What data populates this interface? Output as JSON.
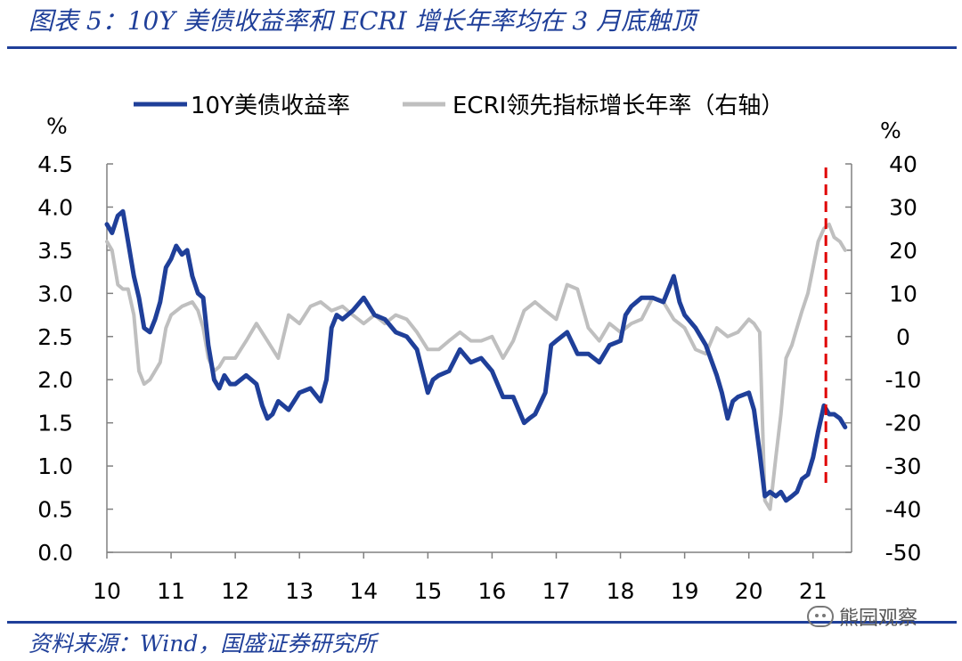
{
  "header": {
    "title": "图表 5：10Y 美债收益率和 ECRI 增长年率均在 3 月底触顶"
  },
  "footer": {
    "source": "资料来源：Wind，国盛证券研究所",
    "watermark": "熊园观察"
  },
  "colors": {
    "accent": "#1f3f99",
    "yield_line": "#1f3f99",
    "ecri_line": "#bfbfbf",
    "marker": "#e00000",
    "axis": "#808080",
    "text": "#000000"
  },
  "chart_data": {
    "type": "line",
    "title": "",
    "left_axis": {
      "unit_label": "%",
      "range": [
        0.0,
        4.5
      ],
      "ticks": [
        "0.0",
        "0.5",
        "1.0",
        "1.5",
        "2.0",
        "2.5",
        "3.0",
        "3.5",
        "4.0",
        "4.5"
      ]
    },
    "right_axis": {
      "unit_label": "%",
      "range": [
        -50,
        40
      ],
      "ticks": [
        "-50",
        "-40",
        "-30",
        "-20",
        "-10",
        "0",
        "10",
        "20",
        "30",
        "40"
      ]
    },
    "x_axis": {
      "range": [
        2010.0,
        2021.6
      ],
      "ticks": [
        2010,
        2011,
        2012,
        2013,
        2014,
        2015,
        2016,
        2017,
        2018,
        2019,
        2020,
        2021
      ],
      "tick_labels": [
        "10",
        "11",
        "12",
        "13",
        "14",
        "15",
        "16",
        "17",
        "18",
        "19",
        "20",
        "21"
      ]
    },
    "legend": {
      "placement": "top",
      "entries": [
        "10Y美债收益率",
        "ECRI领先指标增长年率（右轴）"
      ]
    },
    "grid": false,
    "series": [
      {
        "name": "10Y美债收益率",
        "axis": "left",
        "x": [
          2010.0,
          2010.08,
          2010.17,
          2010.25,
          2010.33,
          2010.42,
          2010.5,
          2010.58,
          2010.67,
          2010.75,
          2010.83,
          2010.92,
          2011.0,
          2011.08,
          2011.17,
          2011.25,
          2011.33,
          2011.42,
          2011.5,
          2011.58,
          2011.67,
          2011.75,
          2011.83,
          2011.92,
          2012.0,
          2012.17,
          2012.33,
          2012.42,
          2012.5,
          2012.58,
          2012.67,
          2012.83,
          2013.0,
          2013.17,
          2013.33,
          2013.42,
          2013.5,
          2013.58,
          2013.67,
          2013.83,
          2014.0,
          2014.17,
          2014.33,
          2014.5,
          2014.67,
          2014.83,
          2015.0,
          2015.08,
          2015.17,
          2015.33,
          2015.5,
          2015.67,
          2015.83,
          2016.0,
          2016.17,
          2016.33,
          2016.5,
          2016.58,
          2016.67,
          2016.83,
          2016.92,
          2017.0,
          2017.17,
          2017.33,
          2017.5,
          2017.67,
          2017.75,
          2017.83,
          2018.0,
          2018.08,
          2018.17,
          2018.33,
          2018.5,
          2018.67,
          2018.75,
          2018.83,
          2018.92,
          2019.0,
          2019.17,
          2019.33,
          2019.5,
          2019.58,
          2019.67,
          2019.75,
          2019.83,
          2020.0,
          2020.08,
          2020.17,
          2020.25,
          2020.33,
          2020.42,
          2020.5,
          2020.58,
          2020.67,
          2020.75,
          2020.83,
          2020.92,
          2021.0,
          2021.08,
          2021.17,
          2021.25,
          2021.33,
          2021.42,
          2021.5
        ],
        "values": [
          3.8,
          3.7,
          3.9,
          3.95,
          3.6,
          3.2,
          2.95,
          2.6,
          2.55,
          2.7,
          2.9,
          3.3,
          3.4,
          3.55,
          3.45,
          3.5,
          3.2,
          3.0,
          2.95,
          2.4,
          2.0,
          1.9,
          2.05,
          1.95,
          1.95,
          2.05,
          1.95,
          1.7,
          1.55,
          1.6,
          1.75,
          1.65,
          1.85,
          1.9,
          1.75,
          2.0,
          2.6,
          2.75,
          2.7,
          2.8,
          2.95,
          2.75,
          2.7,
          2.55,
          2.5,
          2.35,
          1.85,
          2.0,
          2.05,
          2.1,
          2.35,
          2.2,
          2.25,
          2.1,
          1.8,
          1.8,
          1.5,
          1.55,
          1.6,
          1.85,
          2.4,
          2.45,
          2.55,
          2.3,
          2.3,
          2.2,
          2.3,
          2.4,
          2.45,
          2.75,
          2.85,
          2.95,
          2.95,
          2.9,
          3.05,
          3.2,
          2.9,
          2.75,
          2.6,
          2.4,
          2.05,
          1.85,
          1.55,
          1.75,
          1.8,
          1.85,
          1.65,
          1.15,
          0.65,
          0.7,
          0.65,
          0.7,
          0.6,
          0.65,
          0.7,
          0.85,
          0.9,
          1.1,
          1.4,
          1.7,
          1.6,
          1.6,
          1.55,
          1.45
        ]
      },
      {
        "name": "ECRI领先指标增长年率（右轴）",
        "axis": "right",
        "x": [
          2010.0,
          2010.08,
          2010.17,
          2010.25,
          2010.33,
          2010.42,
          2010.5,
          2010.58,
          2010.67,
          2010.75,
          2010.83,
          2010.92,
          2011.0,
          2011.17,
          2011.33,
          2011.42,
          2011.5,
          2011.58,
          2011.67,
          2011.75,
          2011.83,
          2012.0,
          2012.17,
          2012.33,
          2012.5,
          2012.67,
          2012.83,
          2013.0,
          2013.17,
          2013.33,
          2013.5,
          2013.67,
          2013.83,
          2014.0,
          2014.17,
          2014.33,
          2014.5,
          2014.67,
          2014.83,
          2015.0,
          2015.17,
          2015.33,
          2015.5,
          2015.67,
          2015.83,
          2016.0,
          2016.17,
          2016.33,
          2016.5,
          2016.67,
          2016.83,
          2017.0,
          2017.17,
          2017.33,
          2017.5,
          2017.67,
          2017.83,
          2018.0,
          2018.17,
          2018.33,
          2018.5,
          2018.67,
          2018.83,
          2019.0,
          2019.17,
          2019.33,
          2019.5,
          2019.67,
          2019.83,
          2020.0,
          2020.08,
          2020.17,
          2020.25,
          2020.33,
          2020.42,
          2020.5,
          2020.58,
          2020.67,
          2020.75,
          2020.83,
          2020.92,
          2021.0,
          2021.08,
          2021.17,
          2021.25,
          2021.33,
          2021.42,
          2021.5
        ],
        "values": [
          22,
          20,
          12,
          11,
          11,
          5,
          -8,
          -11,
          -10,
          -8,
          -6,
          2,
          5,
          7,
          8,
          6,
          2,
          -5,
          -8,
          -7,
          -5,
          -5,
          -1,
          3,
          -1,
          -5,
          5,
          3,
          7,
          8,
          6,
          7,
          5,
          3,
          5,
          3,
          5,
          4,
          1,
          -3,
          -3,
          -1,
          1,
          -1,
          -1,
          0,
          -5,
          -1,
          6,
          8,
          6,
          4,
          12,
          11,
          2,
          -1,
          3,
          1,
          3,
          4,
          9,
          8,
          4,
          2,
          -3,
          -4,
          2,
          0,
          1,
          4,
          3,
          1,
          -38,
          -40,
          -28,
          -18,
          -5,
          -2,
          2,
          6,
          10,
          16,
          22,
          25,
          26,
          23,
          22,
          20
        ]
      }
    ],
    "annotation": {
      "type": "vertical-dashed-line",
      "x": 2021.2,
      "color": "#e00000"
    }
  }
}
